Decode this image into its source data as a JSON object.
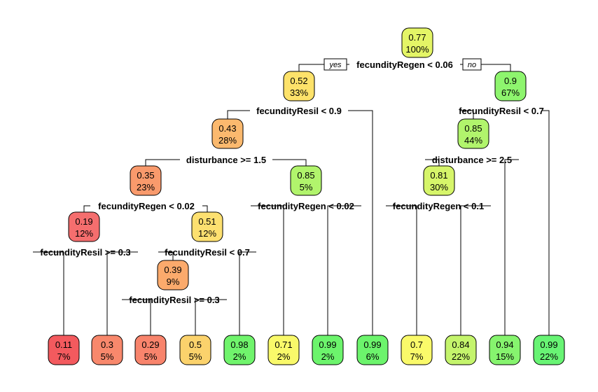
{
  "tags": {
    "yes": "yes",
    "no": "no"
  },
  "nodes": [
    {
      "id": "n1",
      "value": "0.77",
      "pct": "100%",
      "color": "#e4f566",
      "split": "fecundityRegen < 0.06"
    },
    {
      "id": "n2",
      "value": "0.52",
      "pct": "33%",
      "color": "#fde26a",
      "split": "fecundityResil < 0.9"
    },
    {
      "id": "n3",
      "value": "0.9",
      "pct": "67%",
      "color": "#8ef56e",
      "split": "fecundityResil < 0.7"
    },
    {
      "id": "n4",
      "value": "0.43",
      "pct": "28%",
      "color": "#fbb96e",
      "split": "disturbance >= 1.5"
    },
    {
      "id": "n6",
      "value": "0.85",
      "pct": "44%",
      "color": "#b1f46c",
      "split": "disturbance >= 2.5"
    },
    {
      "id": "n8",
      "value": "0.35",
      "pct": "23%",
      "color": "#f99a6c",
      "split": "fecundityRegen < 0.02"
    },
    {
      "id": "n9",
      "value": "0.85",
      "pct": "5%",
      "color": "#b1f46c",
      "split": "fecundityRegen < 0.02"
    },
    {
      "id": "n12",
      "value": "0.81",
      "pct": "30%",
      "color": "#d6f56a",
      "split": "fecundityRegen < 0.1"
    },
    {
      "id": "n16",
      "value": "0.19",
      "pct": "12%",
      "color": "#f56e6e",
      "split": "fecundityResil >= 0.3"
    },
    {
      "id": "n17",
      "value": "0.51",
      "pct": "12%",
      "color": "#fde070",
      "split": "fecundityResil < 0.7"
    },
    {
      "id": "n34",
      "value": "0.39",
      "pct": "9%",
      "color": "#fbaa6c",
      "split": "fecundityResil >= 0.3"
    },
    {
      "id": "l1",
      "value": "0.11",
      "pct": "7%",
      "color": "#f35a5e",
      "split": ""
    },
    {
      "id": "l2",
      "value": "0.3",
      "pct": "5%",
      "color": "#f8886c",
      "split": ""
    },
    {
      "id": "l3",
      "value": "0.29",
      "pct": "5%",
      "color": "#f8846c",
      "split": ""
    },
    {
      "id": "l4",
      "value": "0.5",
      "pct": "5%",
      "color": "#fbd26c",
      "split": ""
    },
    {
      "id": "l5",
      "value": "0.98",
      "pct": "2%",
      "color": "#70f46c",
      "split": ""
    },
    {
      "id": "l6",
      "value": "0.71",
      "pct": "2%",
      "color": "#f9f96a",
      "split": ""
    },
    {
      "id": "l7",
      "value": "0.99",
      "pct": "2%",
      "color": "#6cf46c",
      "split": ""
    },
    {
      "id": "l8",
      "value": "0.99",
      "pct": "6%",
      "color": "#6cf46c",
      "split": ""
    },
    {
      "id": "l9",
      "value": "0.7",
      "pct": "7%",
      "color": "#fafa6a",
      "split": ""
    },
    {
      "id": "l10",
      "value": "0.84",
      "pct": "22%",
      "color": "#c4f46c",
      "split": ""
    },
    {
      "id": "l11",
      "value": "0.94",
      "pct": "15%",
      "color": "#86f46e",
      "split": ""
    },
    {
      "id": "l12",
      "value": "0.99",
      "pct": "22%",
      "color": "#68f474",
      "split": ""
    }
  ]
}
